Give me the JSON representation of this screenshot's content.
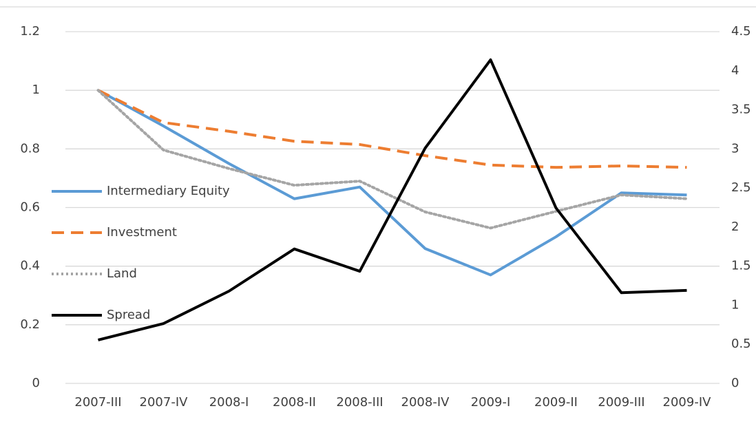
{
  "chart_data": {
    "type": "line",
    "categories": [
      "2007-III",
      "2007-IV",
      "2008-I",
      "2008-II",
      "2008-III",
      "2008-IV",
      "2009-I",
      "2009-II",
      "2009-III",
      "2009-IV"
    ],
    "series": [
      {
        "name": "Intermediary  Equity",
        "color": "#5b9bd5",
        "style": "solid",
        "values": [
          1.0,
          0.878,
          0.75,
          0.63,
          0.67,
          0.46,
          0.37,
          0.5,
          0.65,
          0.643
        ]
      },
      {
        "name": "Investment",
        "color": "#ed7d31",
        "style": "dashed",
        "values": [
          1.0,
          0.89,
          0.86,
          0.826,
          0.815,
          0.777,
          0.745,
          0.737,
          0.742,
          0.737
        ]
      },
      {
        "name": "Land",
        "color": "#a5a5a5",
        "style": "dotted",
        "values": [
          1.0,
          0.796,
          0.733,
          0.676,
          0.69,
          0.585,
          0.53,
          0.587,
          0.643,
          0.63
        ]
      },
      {
        "name": "Spread",
        "color": "#000000",
        "style": "solid",
        "axis": "y2",
        "values": [
          0.555,
          0.766,
          1.18,
          1.72,
          1.435,
          3.01,
          4.14,
          2.245,
          1.16,
          1.19
        ]
      }
    ],
    "ylim": [
      0,
      1.2
    ],
    "yticks": [
      0,
      0.2,
      0.4,
      0.6,
      0.8,
      1,
      1.2
    ],
    "y2lim": [
      0,
      4.5
    ],
    "y2ticks": [
      0,
      0.5,
      1,
      1.5,
      2,
      2.5,
      3,
      3.5,
      4,
      4.5
    ],
    "grid": true,
    "legend": "left"
  }
}
